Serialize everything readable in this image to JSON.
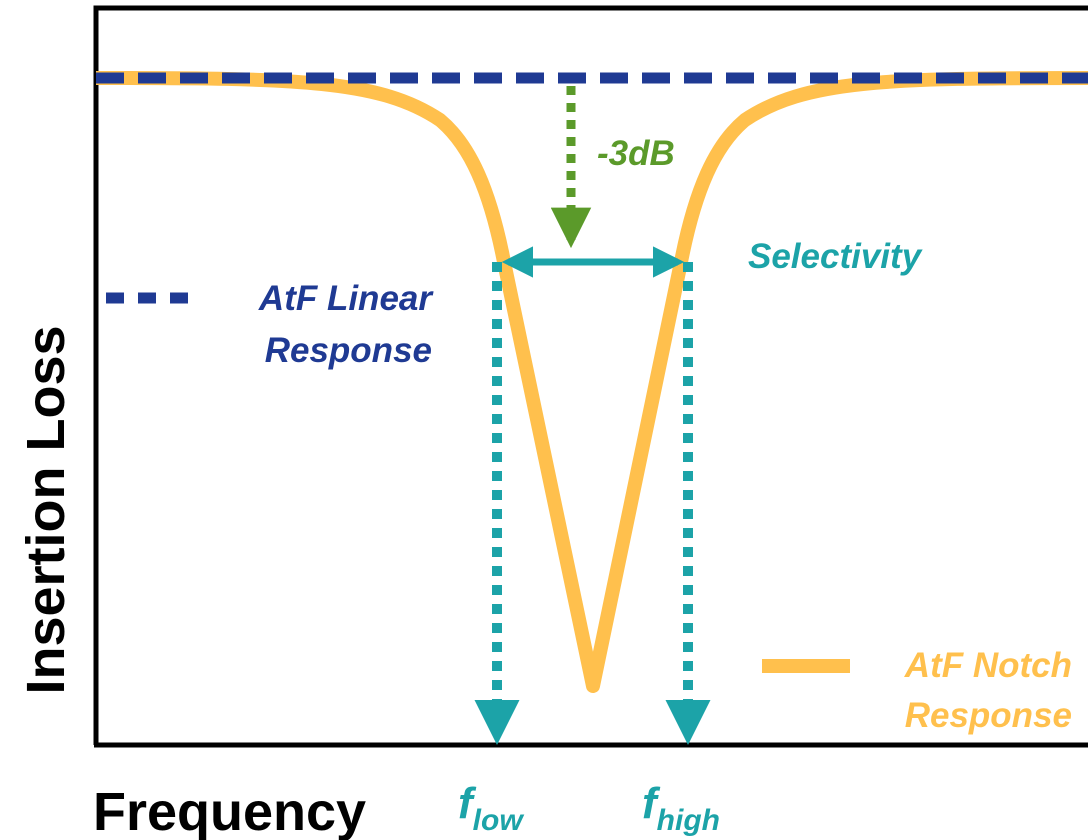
{
  "axes": {
    "x_label": "Frequency",
    "y_label": "Insertion Loss"
  },
  "annotations": {
    "drop": "-3dB",
    "selectivity": "Selectivity",
    "f_low": {
      "base": "f",
      "subscript": "low"
    },
    "f_high": {
      "base": "f",
      "subscript": "high"
    }
  },
  "legend": {
    "linear": {
      "line1": "AtF Linear",
      "line2": "Response"
    },
    "notch": {
      "line1": "AtF Notch",
      "line2": "Response"
    }
  },
  "colors": {
    "linear": "#1f3a93",
    "notch": "#ffc04d",
    "drop_arrow": "#5b9a2a",
    "selectivity": "#1ca3a8",
    "axis": "#000000"
  }
}
